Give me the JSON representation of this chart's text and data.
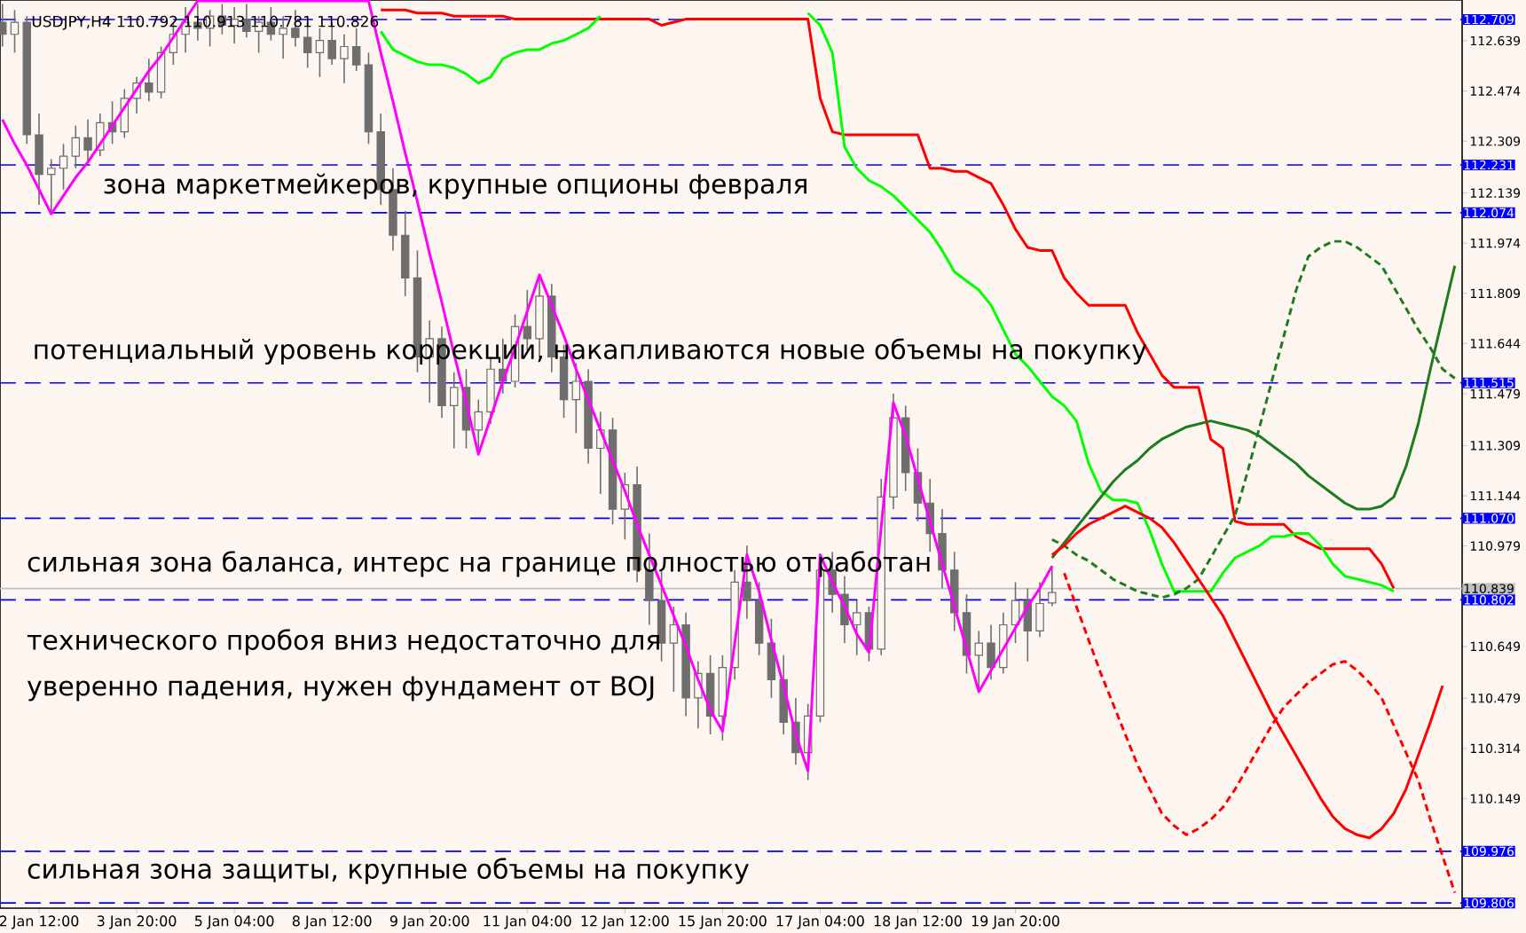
{
  "chart_data": {
    "type": "candlestick",
    "title": "USDJPY,H4  110.792 110.913 110.781 110.826",
    "color": "#6e6e6e",
    "categories": [
      null,
      null,
      null,
      "2 Jan 12:00",
      null,
      null,
      null,
      null,
      null,
      null,
      null,
      "3 Jan 20:00",
      null,
      null,
      null,
      null,
      null,
      null,
      null,
      "5 Jan 04:00",
      null,
      null,
      null,
      null,
      null,
      null,
      null,
      "8 Jan 12:00",
      null,
      null,
      null,
      null,
      null,
      null,
      null,
      "9 Jan 20:00",
      null,
      null,
      null,
      null,
      null,
      null,
      null,
      "11 Jan 04:00",
      null,
      null,
      null,
      null,
      null,
      null,
      null,
      "12 Jan 12:00",
      null,
      null,
      null,
      null,
      null,
      null,
      null,
      "15 Jan 20:00",
      null,
      null,
      null,
      null,
      null,
      null,
      null,
      "17 Jan 04:00",
      null,
      null,
      null,
      null,
      null,
      null,
      null,
      "18 Jan 12:00",
      null,
      null,
      null,
      null,
      null,
      null,
      null,
      "19 Jan 20:00",
      null,
      null,
      null,
      null,
      null,
      null,
      null,
      null,
      null,
      null,
      null,
      null,
      null,
      null,
      null,
      null,
      null,
      null,
      null,
      null,
      null,
      null,
      null,
      null,
      null,
      null,
      null,
      null,
      null,
      null,
      null,
      null,
      null,
      null,
      null,
      null
    ],
    "ohlc": [
      [
        112.7,
        112.76,
        112.62,
        112.66
      ],
      [
        112.66,
        112.74,
        112.6,
        112.7
      ],
      [
        112.7,
        112.72,
        112.3,
        112.33
      ],
      [
        112.33,
        112.4,
        112.1,
        112.2
      ],
      [
        112.2,
        112.25,
        112.07,
        112.22
      ],
      [
        112.22,
        112.3,
        112.15,
        112.26
      ],
      [
        112.26,
        112.36,
        112.22,
        112.32
      ],
      [
        112.32,
        112.38,
        112.24,
        112.28
      ],
      [
        112.28,
        112.4,
        112.26,
        112.37
      ],
      [
        112.37,
        112.44,
        112.3,
        112.34
      ],
      [
        112.34,
        112.48,
        112.32,
        112.45
      ],
      [
        112.45,
        112.52,
        112.4,
        112.5
      ],
      [
        112.5,
        112.58,
        112.44,
        112.47
      ],
      [
        112.47,
        112.62,
        112.45,
        112.6
      ],
      [
        112.6,
        112.7,
        112.56,
        112.66
      ],
      [
        112.66,
        112.75,
        112.6,
        112.7
      ],
      [
        112.7,
        112.76,
        112.64,
        112.68
      ],
      [
        112.68,
        112.74,
        112.62,
        112.72
      ],
      [
        112.72,
        112.76,
        112.66,
        112.69
      ],
      [
        112.69,
        112.75,
        112.63,
        112.71
      ],
      [
        112.71,
        112.76,
        112.65,
        112.67
      ],
      [
        112.67,
        112.72,
        112.6,
        112.7
      ],
      [
        112.7,
        112.75,
        112.64,
        112.66
      ],
      [
        112.66,
        112.72,
        112.58,
        112.68
      ],
      [
        112.68,
        112.74,
        112.62,
        112.65
      ],
      [
        112.65,
        112.7,
        112.55,
        112.6
      ],
      [
        112.6,
        112.68,
        112.52,
        112.64
      ],
      [
        112.64,
        112.7,
        112.56,
        112.58
      ],
      [
        112.58,
        112.66,
        112.5,
        112.62
      ],
      [
        112.62,
        112.68,
        112.54,
        112.56
      ],
      [
        112.56,
        112.6,
        112.3,
        112.34
      ],
      [
        112.34,
        112.4,
        112.1,
        112.15
      ],
      [
        112.15,
        112.22,
        111.95,
        112.0
      ],
      [
        112.0,
        112.08,
        111.8,
        111.86
      ],
      [
        111.86,
        111.95,
        111.55,
        111.6
      ],
      [
        111.6,
        111.72,
        111.45,
        111.66
      ],
      [
        111.66,
        111.7,
        111.4,
        111.44
      ],
      [
        111.44,
        111.55,
        111.3,
        111.5
      ],
      [
        111.5,
        111.56,
        111.3,
        111.36
      ],
      [
        111.36,
        111.46,
        111.28,
        111.42
      ],
      [
        111.42,
        111.6,
        111.38,
        111.56
      ],
      [
        111.56,
        111.66,
        111.48,
        111.52
      ],
      [
        111.52,
        111.74,
        111.5,
        111.7
      ],
      [
        111.7,
        111.82,
        111.62,
        111.66
      ],
      [
        111.66,
        111.87,
        111.6,
        111.8
      ],
      [
        111.8,
        111.84,
        111.55,
        111.6
      ],
      [
        111.6,
        111.64,
        111.4,
        111.46
      ],
      [
        111.46,
        111.58,
        111.35,
        111.52
      ],
      [
        111.52,
        111.56,
        111.25,
        111.3
      ],
      [
        111.3,
        111.42,
        111.15,
        111.36
      ],
      [
        111.36,
        111.4,
        111.05,
        111.1
      ],
      [
        111.1,
        111.22,
        111.0,
        111.18
      ],
      [
        111.18,
        111.24,
        110.86,
        110.9
      ],
      [
        110.9,
        111.02,
        110.72,
        110.8
      ],
      [
        110.8,
        110.9,
        110.6,
        110.66
      ],
      [
        110.66,
        110.78,
        110.5,
        110.72
      ],
      [
        110.72,
        110.76,
        110.42,
        110.48
      ],
      [
        110.48,
        110.6,
        110.38,
        110.56
      ],
      [
        110.56,
        110.62,
        110.36,
        110.42
      ],
      [
        110.42,
        110.62,
        110.34,
        110.58
      ],
      [
        110.58,
        110.9,
        110.54,
        110.86
      ],
      [
        110.86,
        110.98,
        110.74,
        110.8
      ],
      [
        110.8,
        110.86,
        110.62,
        110.66
      ],
      [
        110.66,
        110.74,
        110.48,
        110.54
      ],
      [
        110.54,
        110.62,
        110.36,
        110.4
      ],
      [
        110.4,
        110.48,
        110.26,
        110.3
      ],
      [
        110.3,
        110.46,
        110.21,
        110.42
      ],
      [
        110.42,
        110.95,
        110.4,
        110.9
      ],
      [
        110.9,
        110.96,
        110.76,
        110.82
      ],
      [
        110.82,
        110.88,
        110.66,
        110.72
      ],
      [
        110.72,
        110.8,
        110.62,
        110.76
      ],
      [
        110.76,
        110.78,
        110.6,
        110.64
      ],
      [
        110.64,
        111.2,
        110.62,
        111.14
      ],
      [
        111.14,
        111.48,
        111.1,
        111.4
      ],
      [
        111.4,
        111.44,
        111.16,
        111.22
      ],
      [
        111.22,
        111.3,
        111.06,
        111.12
      ],
      [
        111.12,
        111.2,
        110.96,
        111.02
      ],
      [
        111.02,
        111.1,
        110.84,
        110.9
      ],
      [
        110.9,
        110.96,
        110.7,
        110.76
      ],
      [
        110.76,
        110.82,
        110.56,
        110.62
      ],
      [
        110.62,
        110.7,
        110.5,
        110.66
      ],
      [
        110.66,
        110.72,
        110.54,
        110.58
      ],
      [
        110.58,
        110.76,
        110.56,
        110.72
      ],
      [
        110.72,
        110.86,
        110.66,
        110.8
      ],
      [
        110.8,
        110.84,
        110.6,
        110.7
      ],
      [
        110.7,
        110.86,
        110.68,
        110.79
      ],
      [
        110.792,
        110.913,
        110.781,
        110.826
      ],
      null,
      null,
      null,
      null,
      null,
      null,
      null,
      null,
      null,
      null,
      null,
      null,
      null,
      null,
      null,
      null,
      null,
      null,
      null,
      null,
      null,
      null,
      null,
      null,
      null,
      null,
      null,
      null,
      null,
      null,
      null,
      null,
      null
    ],
    "series": [
      {
        "type": "line",
        "color": "#ff00ff",
        "line_style": "solid",
        "values": [
          112.38,
          112.3,
          112.23,
          112.15,
          112.07,
          112.13,
          112.19,
          112.24,
          112.3,
          112.36,
          112.42,
          112.48,
          112.54,
          112.59,
          112.65,
          112.71,
          112.77,
          112.77,
          112.77,
          112.77,
          112.77,
          112.77,
          112.77,
          112.77,
          112.77,
          112.77,
          112.77,
          112.77,
          112.77,
          112.77,
          112.77,
          112.6,
          112.44,
          112.27,
          112.11,
          111.94,
          111.78,
          111.61,
          111.45,
          111.28,
          111.4,
          111.52,
          111.63,
          111.75,
          111.87,
          111.77,
          111.67,
          111.56,
          111.46,
          111.36,
          111.26,
          111.16,
          111.05,
          110.95,
          110.85,
          110.75,
          110.65,
          110.54,
          110.44,
          110.37,
          110.66,
          110.95,
          110.83,
          110.67,
          110.52,
          110.36,
          110.24,
          110.95,
          110.86,
          110.78,
          110.69,
          110.63,
          111.04,
          111.45,
          111.34,
          111.2,
          111.06,
          110.92,
          110.78,
          110.64,
          110.5,
          110.57,
          110.64,
          110.71,
          110.78,
          110.84,
          110.913,
          null,
          null,
          null,
          null,
          null,
          null,
          null,
          null,
          null,
          null,
          null,
          null,
          null,
          null,
          null,
          null,
          null,
          null,
          null,
          null,
          null,
          null,
          null,
          null,
          null,
          null,
          null,
          null,
          null,
          null,
          null,
          null,
          null
        ]
      },
      {
        "type": "line",
        "color": "#ff0000",
        "line_style": "solid",
        "values": [
          null,
          null,
          null,
          null,
          null,
          null,
          null,
          null,
          null,
          null,
          null,
          null,
          null,
          null,
          null,
          null,
          null,
          null,
          null,
          null,
          null,
          null,
          null,
          null,
          null,
          null,
          null,
          null,
          null,
          null,
          null,
          112.74,
          112.74,
          112.74,
          112.73,
          112.73,
          112.73,
          112.72,
          112.72,
          112.72,
          112.72,
          112.72,
          112.71,
          112.71,
          112.71,
          112.71,
          112.71,
          112.71,
          112.71,
          112.71,
          112.71,
          112.71,
          112.71,
          112.71,
          112.69,
          112.7,
          112.71,
          112.71,
          112.71,
          112.71,
          112.71,
          112.71,
          112.71,
          112.71,
          112.71,
          112.71,
          112.71,
          112.45,
          112.34,
          112.33,
          112.33,
          112.33,
          112.33,
          112.33,
          112.33,
          112.33,
          112.22,
          112.22,
          112.21,
          112.21,
          112.19,
          112.17,
          112.1,
          112.02,
          111.96,
          111.95,
          111.95,
          111.86,
          111.81,
          111.77,
          111.77,
          111.77,
          111.77,
          111.68,
          111.61,
          111.54,
          111.5,
          111.5,
          111.5,
          111.33,
          111.3,
          111.06,
          111.05,
          111.05,
          111.05,
          111.05,
          111.01,
          110.99,
          110.97,
          110.97,
          110.97,
          110.97,
          110.97,
          110.92,
          110.84,
          null,
          null,
          null,
          null,
          null
        ]
      },
      {
        "type": "line",
        "color": "#00ff00",
        "line_style": "solid",
        "values": [
          null,
          null,
          null,
          null,
          null,
          null,
          null,
          null,
          null,
          null,
          null,
          null,
          null,
          null,
          null,
          null,
          null,
          null,
          null,
          null,
          null,
          null,
          null,
          null,
          null,
          null,
          null,
          null,
          null,
          null,
          null,
          112.67,
          112.61,
          112.59,
          112.57,
          112.56,
          112.56,
          112.55,
          112.53,
          112.5,
          112.52,
          112.58,
          112.6,
          112.61,
          112.61,
          112.63,
          112.64,
          112.66,
          112.68,
          112.72,
          null,
          null,
          null,
          null,
          null,
          null,
          null,
          null,
          null,
          null,
          null,
          null,
          null,
          null,
          null,
          null,
          112.73,
          112.69,
          112.6,
          112.29,
          112.22,
          112.18,
          112.16,
          112.13,
          112.09,
          112.05,
          112.01,
          111.95,
          111.88,
          111.85,
          111.82,
          111.77,
          111.69,
          111.61,
          111.57,
          111.52,
          111.47,
          111.44,
          111.39,
          111.25,
          111.16,
          111.13,
          111.13,
          111.12,
          111.03,
          110.92,
          110.83,
          110.83,
          110.83,
          110.83,
          110.89,
          110.94,
          110.96,
          110.98,
          111.01,
          111.01,
          111.02,
          111.02,
          110.98,
          110.92,
          110.88,
          110.87,
          110.86,
          110.85,
          110.83,
          null,
          null,
          null,
          null,
          null
        ]
      },
      {
        "type": "line",
        "color": "#1e7b1e",
        "line_style": "solid",
        "values": [
          null,
          null,
          null,
          null,
          null,
          null,
          null,
          null,
          null,
          null,
          null,
          null,
          null,
          null,
          null,
          null,
          null,
          null,
          null,
          null,
          null,
          null,
          null,
          null,
          null,
          null,
          null,
          null,
          null,
          null,
          null,
          null,
          null,
          null,
          null,
          null,
          null,
          null,
          null,
          null,
          null,
          null,
          null,
          null,
          null,
          null,
          null,
          null,
          null,
          null,
          null,
          null,
          null,
          null,
          null,
          null,
          null,
          null,
          null,
          null,
          null,
          null,
          null,
          null,
          null,
          null,
          null,
          null,
          null,
          null,
          null,
          null,
          null,
          null,
          null,
          null,
          null,
          null,
          null,
          null,
          null,
          null,
          null,
          null,
          null,
          null,
          110.94,
          110.99,
          111.04,
          111.09,
          111.14,
          111.19,
          111.23,
          111.26,
          111.3,
          111.33,
          111.35,
          111.37,
          111.38,
          111.39,
          111.38,
          111.37,
          111.36,
          111.34,
          111.31,
          111.28,
          111.25,
          111.21,
          111.18,
          111.15,
          111.12,
          111.1,
          111.1,
          111.11,
          111.14,
          111.24,
          111.38,
          111.56,
          111.73,
          111.9
        ]
      },
      {
        "type": "line",
        "color": "#1e7b1e",
        "line_style": "dashed",
        "values": [
          null,
          null,
          null,
          null,
          null,
          null,
          null,
          null,
          null,
          null,
          null,
          null,
          null,
          null,
          null,
          null,
          null,
          null,
          null,
          null,
          null,
          null,
          null,
          null,
          null,
          null,
          null,
          null,
          null,
          null,
          null,
          null,
          null,
          null,
          null,
          null,
          null,
          null,
          null,
          null,
          null,
          null,
          null,
          null,
          null,
          null,
          null,
          null,
          null,
          null,
          null,
          null,
          null,
          null,
          null,
          null,
          null,
          null,
          null,
          null,
          null,
          null,
          null,
          null,
          null,
          null,
          null,
          null,
          null,
          null,
          null,
          null,
          null,
          null,
          null,
          null,
          null,
          null,
          null,
          null,
          null,
          null,
          null,
          null,
          null,
          null,
          111.0,
          110.98,
          110.95,
          110.93,
          110.9,
          110.87,
          110.85,
          110.83,
          110.82,
          110.81,
          110.82,
          110.84,
          110.87,
          110.94,
          111.01,
          111.08,
          111.22,
          111.37,
          111.52,
          111.67,
          111.82,
          111.93,
          111.96,
          111.98,
          111.98,
          111.96,
          111.93,
          111.9,
          111.83,
          111.76,
          111.69,
          111.63,
          111.56,
          111.53
        ]
      },
      {
        "type": "line",
        "color": "#ff0000",
        "line_style": "solid",
        "values": [
          null,
          null,
          null,
          null,
          null,
          null,
          null,
          null,
          null,
          null,
          null,
          null,
          null,
          null,
          null,
          null,
          null,
          null,
          null,
          null,
          null,
          null,
          null,
          null,
          null,
          null,
          null,
          null,
          null,
          null,
          null,
          null,
          null,
          null,
          null,
          null,
          null,
          null,
          null,
          null,
          null,
          null,
          null,
          null,
          null,
          null,
          null,
          null,
          null,
          null,
          null,
          null,
          null,
          null,
          null,
          null,
          null,
          null,
          null,
          null,
          null,
          null,
          null,
          null,
          null,
          null,
          null,
          null,
          null,
          null,
          null,
          null,
          null,
          null,
          null,
          null,
          null,
          null,
          null,
          null,
          null,
          null,
          null,
          null,
          null,
          null,
          110.95,
          110.98,
          111.02,
          111.05,
          111.07,
          111.09,
          111.11,
          111.09,
          111.07,
          111.04,
          110.99,
          110.93,
          110.87,
          110.81,
          110.75,
          110.67,
          110.59,
          110.51,
          110.43,
          110.36,
          110.29,
          110.22,
          110.15,
          110.09,
          110.05,
          110.03,
          110.02,
          110.05,
          110.1,
          110.18,
          110.29,
          110.4,
          110.52,
          null
        ]
      },
      {
        "type": "line",
        "color": "#ff0000",
        "line_style": "dashed",
        "values": [
          null,
          null,
          null,
          null,
          null,
          null,
          null,
          null,
          null,
          null,
          null,
          null,
          null,
          null,
          null,
          null,
          null,
          null,
          null,
          null,
          null,
          null,
          null,
          null,
          null,
          null,
          null,
          null,
          null,
          null,
          null,
          null,
          null,
          null,
          null,
          null,
          null,
          null,
          null,
          null,
          null,
          null,
          null,
          null,
          null,
          null,
          null,
          null,
          null,
          null,
          null,
          null,
          null,
          null,
          null,
          null,
          null,
          null,
          null,
          null,
          null,
          null,
          null,
          null,
          null,
          null,
          null,
          null,
          null,
          null,
          null,
          null,
          null,
          null,
          null,
          null,
          null,
          null,
          null,
          null,
          null,
          null,
          null,
          null,
          null,
          null,
          null,
          110.89,
          110.78,
          110.67,
          110.56,
          110.46,
          110.36,
          110.26,
          110.18,
          110.1,
          110.06,
          110.03,
          110.05,
          110.08,
          110.12,
          110.18,
          110.25,
          110.32,
          110.39,
          110.45,
          110.49,
          110.53,
          110.56,
          110.59,
          110.6,
          110.57,
          110.53,
          110.48,
          110.39,
          110.3,
          110.21,
          110.08,
          109.96,
          109.84
        ]
      }
    ],
    "ylim": [
      109.789,
      112.773
    ],
    "yticks": [
      112.639,
      112.474,
      112.309,
      112.139,
      111.974,
      111.809,
      111.644,
      111.479,
      111.309,
      111.144,
      110.979,
      110.649,
      110.479,
      110.314,
      110.149
    ],
    "ref_lines": [
      {
        "axis": "y",
        "value": 112.709,
        "label": "112.709",
        "color": "#0000ff",
        "line_style": "dashed"
      },
      {
        "axis": "y",
        "value": 112.231,
        "label": "112.231",
        "color": "#0000ff",
        "line_style": "dashed"
      },
      {
        "axis": "y",
        "value": 112.074,
        "label": "112.074",
        "color": "#0000ff",
        "line_style": "dashed"
      },
      {
        "axis": "y",
        "value": 111.515,
        "label": "111.515",
        "color": "#0000ff",
        "line_style": "dashed"
      },
      {
        "axis": "y",
        "value": 111.07,
        "label": "111.070",
        "color": "#0000ff",
        "line_style": "dashed"
      },
      {
        "axis": "y",
        "value": 110.839,
        "label": "110.839",
        "color": "#c0c0c0",
        "line_style": "solid"
      },
      {
        "axis": "y",
        "value": 110.802,
        "label": "110.802",
        "color": "#0000ff",
        "line_style": "dashed"
      },
      {
        "axis": "y",
        "value": 109.976,
        "label": "109.976",
        "color": "#0000ff",
        "line_style": "dashed"
      },
      {
        "axis": "y",
        "value": 109.806,
        "label": "109.806",
        "color": "#0000ff",
        "line_style": "dashed"
      }
    ],
    "annotations": [
      "зона маркетмейкеров, крупные опционы февраля",
      "потенциальный уровень коррекции, накапливаются новые объемы на покупку",
      "сильная зона баланса, интерс на границе полностью отработан",
      "технического пробоя вниз недостаточно для",
      "уверенно падения, нужен фундамент от BOJ",
      "сильная зона защиты, крупные объемы на покупку"
    ]
  }
}
